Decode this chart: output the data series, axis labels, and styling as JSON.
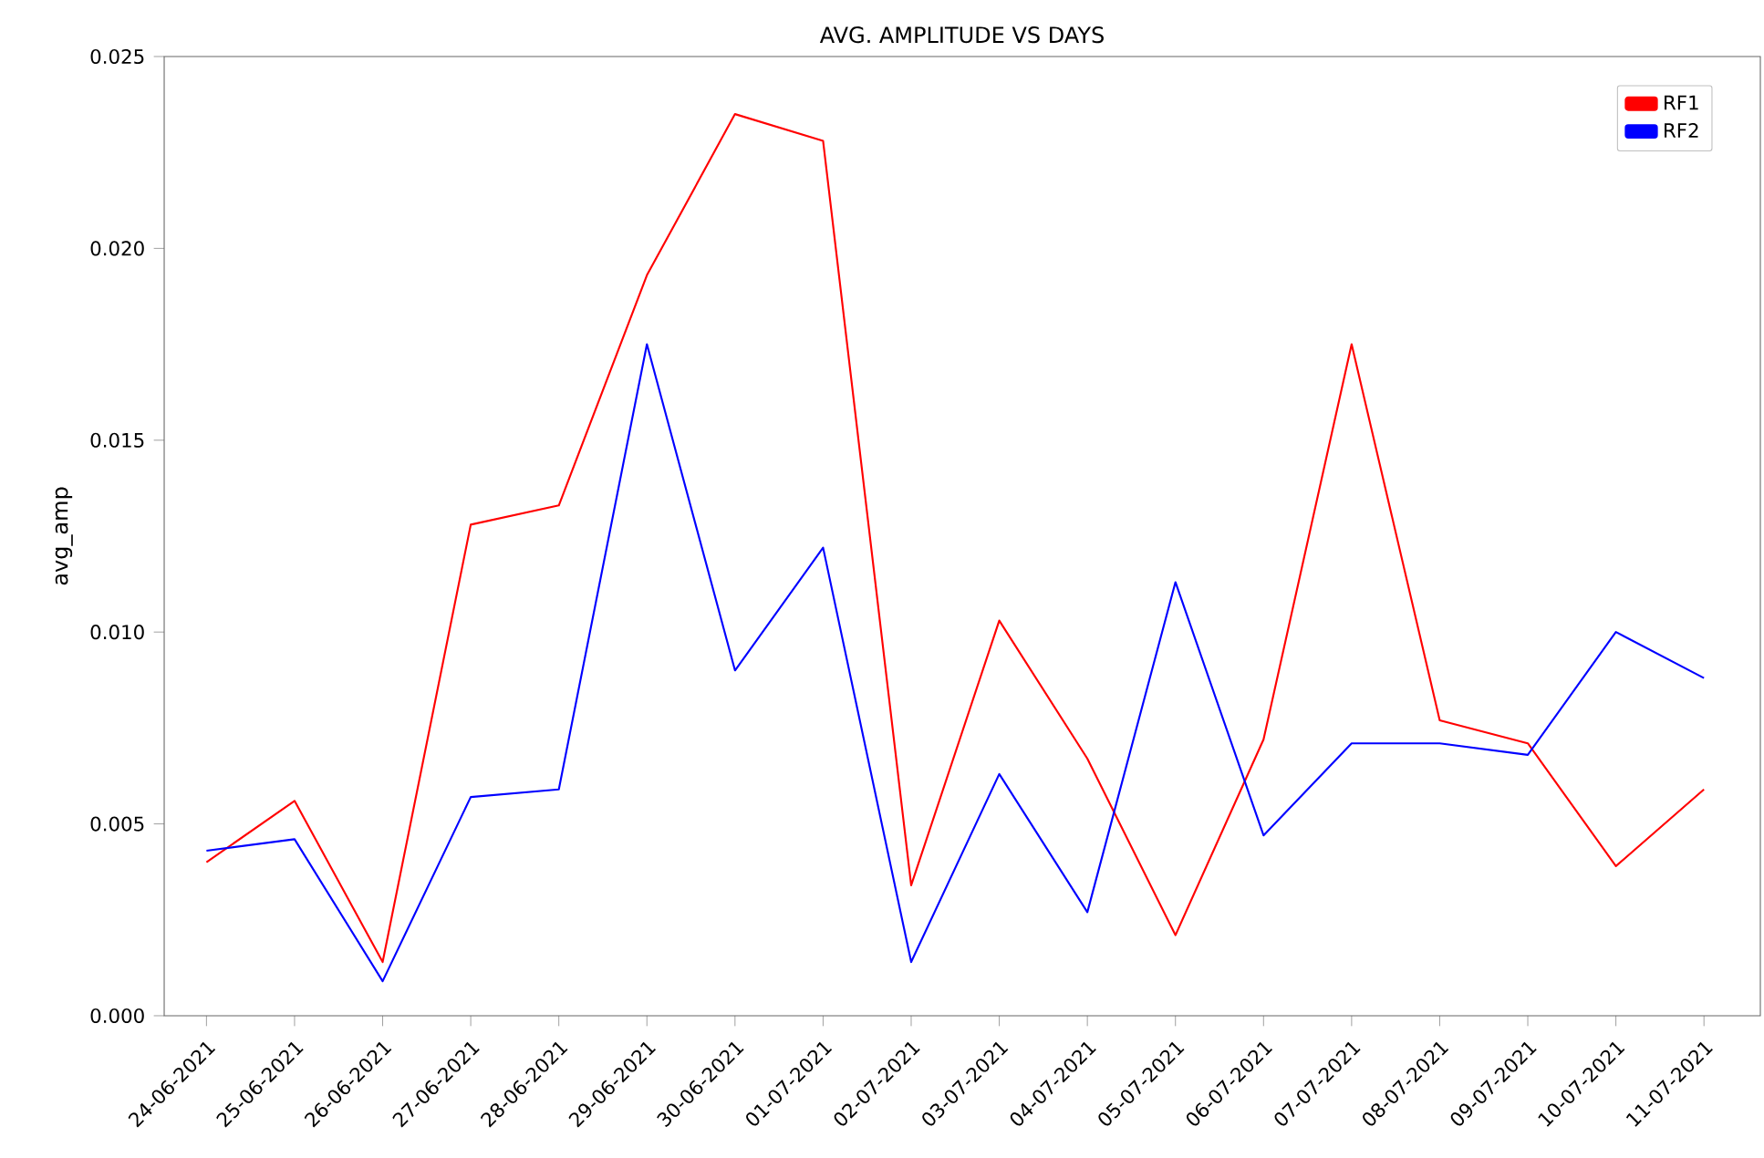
{
  "chart_data": {
    "type": "line",
    "title": "AVG. AMPLITUDE VS DAYS",
    "ylabel": "avg_amp",
    "categories": [
      "24-06-2021",
      "25-06-2021",
      "26-06-2021",
      "27-06-2021",
      "28-06-2021",
      "29-06-2021",
      "30-06-2021",
      "01-07-2021",
      "02-07-2021",
      "03-07-2021",
      "04-07-2021",
      "05-07-2021",
      "06-07-2021",
      "07-07-2021",
      "08-07-2021",
      "09-07-2021",
      "10-07-2021",
      "11-07-2021"
    ],
    "series": [
      {
        "name": "RF1",
        "color": "#ff0000",
        "values": [
          0.004,
          0.0056,
          0.0014,
          0.0128,
          0.0133,
          0.0193,
          0.0235,
          0.0228,
          0.0034,
          0.0103,
          0.0067,
          0.0021,
          0.0072,
          0.0175,
          0.0077,
          0.0071,
          0.0039,
          0.0059
        ]
      },
      {
        "name": "RF2",
        "color": "#0000ff",
        "values": [
          0.0043,
          0.0046,
          0.0009,
          0.0057,
          0.0059,
          0.0175,
          0.009,
          0.0122,
          0.0014,
          0.0063,
          0.0027,
          0.0113,
          0.0047,
          0.0071,
          0.0071,
          0.0068,
          0.01,
          0.0088
        ]
      }
    ],
    "ylim": [
      0,
      0.025
    ],
    "yticks": [
      {
        "value": 0,
        "label": "0.000"
      },
      {
        "value": 0.005,
        "label": "0.005"
      },
      {
        "value": 0.01,
        "label": "0.010"
      },
      {
        "value": 0.015,
        "label": "0.015"
      },
      {
        "value": 0.02,
        "label": "0.020"
      },
      {
        "value": 0.025,
        "label": "0.025"
      }
    ],
    "legend": "top right"
  }
}
